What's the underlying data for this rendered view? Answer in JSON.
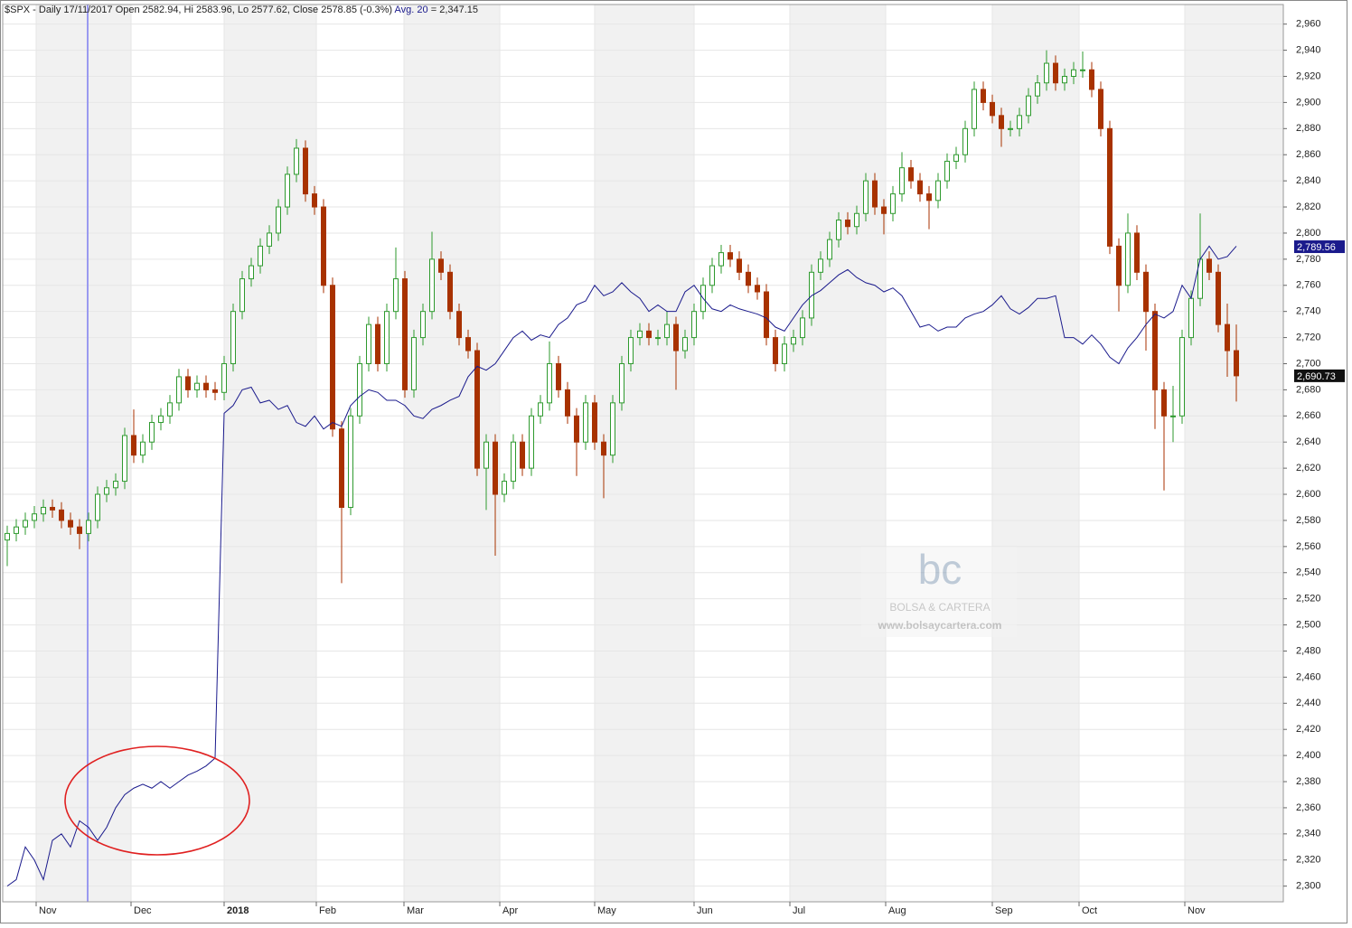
{
  "chart_data": {
    "type": "candlestick",
    "title": "$SPX - Daily 17/11/2017 Open 2582.94, Hi 2583.96, Lo 2577.62, Close 2578.85 (-0.3%)",
    "avg_readout": "= 2,347.15",
    "up_color": "#2e9a2e",
    "down_color": "#a83200",
    "grid": true,
    "xlim": [
      -0.5,
      141.2
    ],
    "ylim": [
      2288,
      2975
    ],
    "xticks": [
      {
        "value": 3.2,
        "label": "Nov"
      },
      {
        "value": 13.7,
        "label": "Dec"
      },
      {
        "value": 24,
        "label": "2018"
      },
      {
        "value": 34.2,
        "label": "Feb"
      },
      {
        "value": 43.9,
        "label": "Mar"
      },
      {
        "value": 54.5,
        "label": "Apr"
      },
      {
        "value": 65,
        "label": "May"
      },
      {
        "value": 76,
        "label": "Jun"
      },
      {
        "value": 86.6,
        "label": "Jul"
      },
      {
        "value": 97.2,
        "label": "Aug"
      },
      {
        "value": 109,
        "label": "Sep"
      },
      {
        "value": 118.6,
        "label": "Oct"
      },
      {
        "value": 130.3,
        "label": "Nov"
      }
    ],
    "yticks": [
      {
        "value": 2300,
        "label": "2,300"
      },
      {
        "value": 2320,
        "label": "2,320"
      },
      {
        "value": 2340,
        "label": "2,340"
      },
      {
        "value": 2360,
        "label": "2,360"
      },
      {
        "value": 2380,
        "label": "2,380"
      },
      {
        "value": 2400,
        "label": "2,400"
      },
      {
        "value": 2420,
        "label": "2,420"
      },
      {
        "value": 2440,
        "label": "2,440"
      },
      {
        "value": 2460,
        "label": "2,460"
      },
      {
        "value": 2480,
        "label": "2,480"
      },
      {
        "value": 2500,
        "label": "2,500"
      },
      {
        "value": 2520,
        "label": "2,520"
      },
      {
        "value": 2540,
        "label": "2,540"
      },
      {
        "value": 2560,
        "label": "2,560"
      },
      {
        "value": 2580,
        "label": "2,580"
      },
      {
        "value": 2600,
        "label": "2,600"
      },
      {
        "value": 2620,
        "label": "2,620"
      },
      {
        "value": 2640,
        "label": "2,640"
      },
      {
        "value": 2660,
        "label": "2,660"
      },
      {
        "value": 2680,
        "label": "2,680"
      },
      {
        "value": 2700,
        "label": "2,700"
      },
      {
        "value": 2720,
        "label": "2,720"
      },
      {
        "value": 2740,
        "label": "2,740"
      },
      {
        "value": 2760,
        "label": "2,760"
      },
      {
        "value": 2780,
        "label": "2,780"
      },
      {
        "value": 2800,
        "label": "2,800"
      },
      {
        "value": 2820,
        "label": "2,820"
      },
      {
        "value": 2840,
        "label": "2,840"
      },
      {
        "value": 2860,
        "label": "2,860"
      },
      {
        "value": 2880,
        "label": "2,880"
      },
      {
        "value": 2900,
        "label": "2,900"
      },
      {
        "value": 2920,
        "label": "2,920"
      },
      {
        "value": 2940,
        "label": "2,940"
      },
      {
        "value": 2960,
        "label": "2,960"
      }
    ],
    "open": [
      2565,
      2570,
      2575,
      2580,
      2585,
      2590,
      2588,
      2580,
      2575,
      2570,
      2580,
      2600,
      2605,
      2610,
      2645,
      2630,
      2640,
      2655,
      2660,
      2670,
      2690,
      2680,
      2685,
      2680,
      2678,
      2700,
      2740,
      2765,
      2775,
      2790,
      2800,
      2820,
      2845,
      2865,
      2830,
      2820,
      2760,
      2650,
      2590,
      2660,
      2700,
      2730,
      2700,
      2740,
      2765,
      2680,
      2720,
      2740,
      2780,
      2770,
      2740,
      2720,
      2710,
      2620,
      2640,
      2600,
      2610,
      2640,
      2620,
      2660,
      2670,
      2700,
      2680,
      2660,
      2640,
      2670,
      2640,
      2630,
      2670,
      2700,
      2720,
      2725,
      2720,
      2720,
      2730,
      2710,
      2720,
      2740,
      2760,
      2775,
      2785,
      2780,
      2770,
      2760,
      2755,
      2720,
      2700,
      2715,
      2720,
      2735,
      2770,
      2780,
      2795,
      2810,
      2805,
      2815,
      2840,
      2820,
      2815,
      2830,
      2850,
      2840,
      2830,
      2825,
      2840,
      2855,
      2860,
      2880,
      2910,
      2900,
      2890,
      2880,
      2880,
      2890,
      2905,
      2915,
      2930,
      2915,
      2920,
      2925,
      2925,
      2910,
      2880,
      2790,
      2760,
      2800,
      2770,
      2740,
      2680,
      2660,
      2660,
      2720,
      2750,
      2780,
      2770,
      2730,
      2710
    ],
    "high": [
      2576,
      2581,
      2586,
      2591,
      2596,
      2596,
      2594,
      2586,
      2581,
      2586,
      2606,
      2611,
      2616,
      2651,
      2665,
      2646,
      2661,
      2666,
      2676,
      2696,
      2696,
      2691,
      2691,
      2686,
      2706,
      2746,
      2771,
      2781,
      2796,
      2806,
      2826,
      2851,
      2872,
      2871,
      2836,
      2826,
      2766,
      2656,
      2666,
      2706,
      2736,
      2736,
      2746,
      2789,
      2771,
      2726,
      2746,
      2801,
      2786,
      2776,
      2746,
      2726,
      2716,
      2646,
      2646,
      2616,
      2646,
      2646,
      2666,
      2676,
      2717,
      2706,
      2686,
      2666,
      2676,
      2676,
      2646,
      2676,
      2706,
      2726,
      2731,
      2731,
      2726,
      2740,
      2736,
      2726,
      2746,
      2766,
      2781,
      2791,
      2791,
      2786,
      2776,
      2766,
      2761,
      2726,
      2721,
      2726,
      2741,
      2776,
      2786,
      2801,
      2816,
      2816,
      2821,
      2846,
      2846,
      2826,
      2836,
      2862,
      2856,
      2846,
      2836,
      2846,
      2861,
      2866,
      2886,
      2916,
      2916,
      2906,
      2896,
      2886,
      2896,
      2911,
      2921,
      2940,
      2936,
      2926,
      2931,
      2939,
      2931,
      2916,
      2886,
      2796,
      2815,
      2806,
      2776,
      2746,
      2686,
      2683,
      2726,
      2756,
      2815,
      2786,
      2776,
      2746,
      2730
    ],
    "low": [
      2545,
      2564,
      2569,
      2574,
      2579,
      2582,
      2574,
      2569,
      2558,
      2564,
      2574,
      2594,
      2599,
      2604,
      2624,
      2624,
      2634,
      2649,
      2654,
      2664,
      2674,
      2674,
      2674,
      2672,
      2672,
      2694,
      2734,
      2759,
      2769,
      2784,
      2794,
      2814,
      2839,
      2824,
      2814,
      2754,
      2644,
      2532,
      2584,
      2654,
      2694,
      2694,
      2694,
      2734,
      2674,
      2674,
      2714,
      2734,
      2764,
      2734,
      2714,
      2704,
      2614,
      2588,
      2553,
      2594,
      2604,
      2614,
      2614,
      2654,
      2664,
      2674,
      2654,
      2614,
      2634,
      2634,
      2597,
      2624,
      2664,
      2694,
      2714,
      2714,
      2714,
      2714,
      2680,
      2704,
      2714,
      2734,
      2754,
      2769,
      2774,
      2764,
      2754,
      2749,
      2714,
      2694,
      2694,
      2709,
      2714,
      2729,
      2764,
      2774,
      2789,
      2799,
      2799,
      2809,
      2814,
      2799,
      2809,
      2824,
      2834,
      2824,
      2803,
      2819,
      2834,
      2849,
      2854,
      2874,
      2894,
      2884,
      2866,
      2874,
      2874,
      2884,
      2899,
      2909,
      2909,
      2909,
      2914,
      2919,
      2904,
      2874,
      2784,
      2740,
      2754,
      2764,
      2710,
      2650,
      2603,
      2640,
      2654,
      2714,
      2744,
      2764,
      2724,
      2690,
      2671
    ],
    "close": [
      2570,
      2575,
      2580,
      2585,
      2590,
      2588,
      2580,
      2575,
      2570,
      2580,
      2600,
      2605,
      2610,
      2645,
      2630,
      2640,
      2655,
      2660,
      2670,
      2690,
      2680,
      2685,
      2680,
      2678,
      2700,
      2740,
      2765,
      2775,
      2790,
      2800,
      2820,
      2845,
      2865,
      2830,
      2820,
      2760,
      2650,
      2590,
      2660,
      2700,
      2730,
      2700,
      2740,
      2765,
      2680,
      2720,
      2740,
      2780,
      2770,
      2740,
      2720,
      2710,
      2620,
      2640,
      2600,
      2610,
      2640,
      2620,
      2660,
      2670,
      2700,
      2680,
      2660,
      2640,
      2670,
      2640,
      2630,
      2670,
      2700,
      2720,
      2725,
      2720,
      2720,
      2730,
      2710,
      2720,
      2740,
      2760,
      2775,
      2785,
      2780,
      2770,
      2760,
      2755,
      2720,
      2700,
      2715,
      2720,
      2735,
      2770,
      2780,
      2795,
      2810,
      2805,
      2815,
      2840,
      2820,
      2815,
      2830,
      2850,
      2840,
      2830,
      2825,
      2840,
      2855,
      2860,
      2880,
      2910,
      2900,
      2890,
      2880,
      2880,
      2890,
      2905,
      2915,
      2930,
      2915,
      2920,
      2925,
      2925,
      2910,
      2880,
      2790,
      2760,
      2800,
      2770,
      2740,
      2680,
      2660,
      2660,
      2720,
      2750,
      2780,
      2770,
      2730,
      2710,
      2690.73
    ],
    "series": [
      {
        "name": "Avg. 20",
        "color": "#1a1a8c",
        "values": [
          2300,
          2305,
          2330,
          2320,
          2305,
          2335,
          2340,
          2330,
          2350,
          2345,
          2335,
          2345,
          2360,
          2370,
          2375,
          2378,
          2375,
          2380,
          2375,
          2380,
          2385,
          2388,
          2392,
          2398,
          2662,
          2668,
          2680,
          2682,
          2670,
          2672,
          2665,
          2668,
          2655,
          2652,
          2660,
          2650,
          2655,
          2652,
          2668,
          2675,
          2680,
          2678,
          2672,
          2672,
          2668,
          2660,
          2658,
          2665,
          2668,
          2672,
          2675,
          2690,
          2698,
          2695,
          2700,
          2710,
          2720,
          2725,
          2718,
          2722,
          2720,
          2730,
          2735,
          2745,
          2748,
          2760,
          2752,
          2755,
          2762,
          2755,
          2750,
          2740,
          2745,
          2740,
          2740,
          2755,
          2760,
          2750,
          2742,
          2740,
          2745,
          2742,
          2740,
          2738,
          2735,
          2728,
          2725,
          2735,
          2745,
          2752,
          2756,
          2762,
          2768,
          2772,
          2766,
          2762,
          2760,
          2755,
          2758,
          2752,
          2740,
          2728,
          2730,
          2725,
          2728,
          2728,
          2735,
          2738,
          2740,
          2745,
          2752,
          2742,
          2738,
          2743,
          2750,
          2750,
          2752,
          2720,
          2720,
          2715,
          2722,
          2715,
          2705,
          2700,
          2712,
          2720,
          2730,
          2738,
          2735,
          2740,
          2760,
          2750,
          2780,
          2790,
          2780,
          2782,
          2790
        ]
      }
    ],
    "price_tags": [
      {
        "value": 2789.56,
        "label": "2,789.56"
      },
      {
        "value": 2690.73,
        "label": "2,690.73"
      }
    ]
  },
  "watermark": {
    "logo": "bc",
    "brand": "BOLSA & CARTERA",
    "url": "www.bolsaycartera.com"
  }
}
